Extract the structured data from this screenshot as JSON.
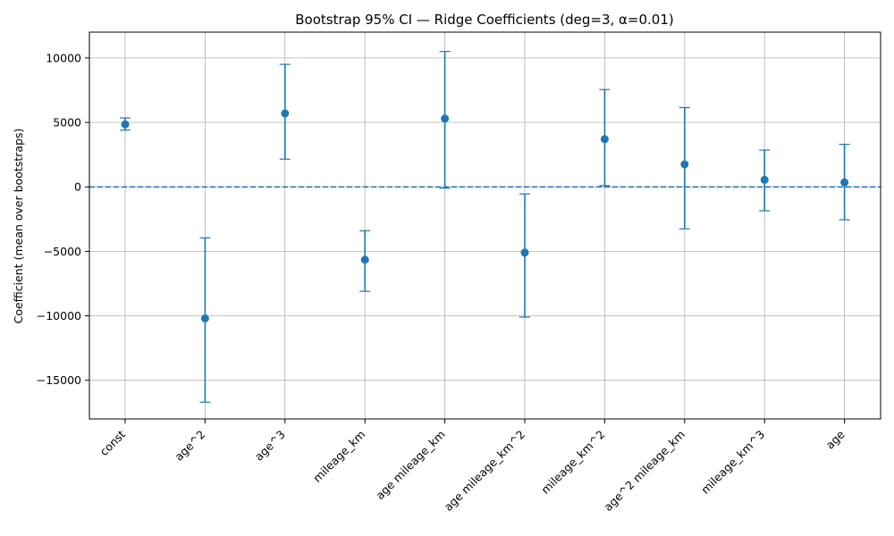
{
  "chart_data": {
    "type": "errorbar",
    "title": "Bootstrap 95% CI — Ridge Coefficients (deg=3, α=0.01)",
    "xlabel": "",
    "ylabel": "Coefficient (mean over bootstraps)",
    "ylim": [
      -18000,
      12000
    ],
    "yticks": [
      10000,
      5000,
      0,
      -5000,
      -10000,
      -15000
    ],
    "ytick_labels": [
      "10000",
      "5000",
      "0",
      "−5000",
      "−10000",
      "−15000"
    ],
    "grid": true,
    "reference_line": {
      "y": 0,
      "style": "dashed"
    },
    "color": "#1f77b4",
    "categories": [
      "const",
      "age^2",
      "age^3",
      "mileage_km",
      "age mileage_km",
      "age mileage_km^2",
      "mileage_km^2",
      "age^2 mileage_km",
      "mileage_km^3",
      "age"
    ],
    "mean": [
      4850,
      -10200,
      5700,
      -5650,
      5300,
      -5100,
      3700,
      1750,
      550,
      350
    ],
    "ci_lower": [
      4400,
      -16700,
      2150,
      -8100,
      -100,
      -10100,
      100,
      -3250,
      -1850,
      -2550
    ],
    "ci_upper": [
      5350,
      -3950,
      9500,
      -3400,
      10500,
      -550,
      7550,
      6150,
      2850,
      3300
    ]
  }
}
